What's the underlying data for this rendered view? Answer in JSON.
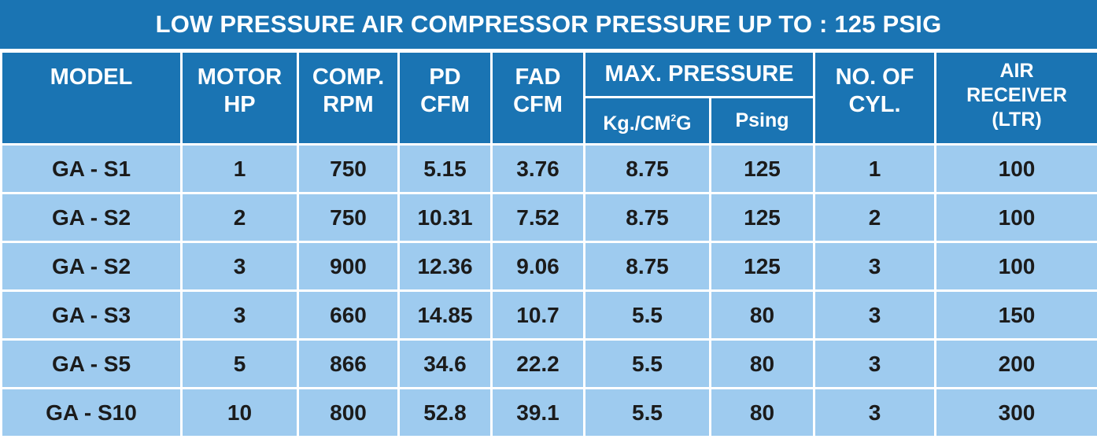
{
  "title": "LOW PRESSURE AIR COMPRESSOR PRESSURE UP TO : 125 PSIG",
  "headers": {
    "model": "MODEL",
    "motor_hp": [
      "MOTOR",
      "HP"
    ],
    "comp_rpm": [
      "COMP.",
      "RPM"
    ],
    "pd_cfm": [
      "PD",
      "CFM"
    ],
    "fad_cfm": [
      "FAD",
      "CFM"
    ],
    "max_pressure": "MAX. PRESSURE",
    "kg_cm2g": {
      "prefix": "Kg./CM",
      "superscript": "2",
      "suffix": "G"
    },
    "psing": "Psing",
    "no_of_cyl": [
      "NO. OF",
      "CYL."
    ],
    "air_receiver": [
      "AIR",
      "RECEIVER",
      "(LTR)"
    ]
  },
  "rows": [
    [
      "GA - S1",
      "1",
      "750",
      "5.15",
      "3.76",
      "8.75",
      "125",
      "1",
      "100"
    ],
    [
      "GA - S2",
      "2",
      "750",
      "10.31",
      "7.52",
      "8.75",
      "125",
      "2",
      "100"
    ],
    [
      "GA - S2",
      "3",
      "900",
      "12.36",
      "9.06",
      "8.75",
      "125",
      "3",
      "100"
    ],
    [
      "GA - S3",
      "3",
      "660",
      "14.85",
      "10.7",
      "5.5",
      "80",
      "3",
      "150"
    ],
    [
      "GA - S5",
      "5",
      "866",
      "34.6",
      "22.2",
      "5.5",
      "80",
      "3",
      "200"
    ],
    [
      "GA - S10",
      "10",
      "800",
      "52.8",
      "39.1",
      "5.5",
      "80",
      "3",
      "300"
    ]
  ],
  "colors": {
    "header_blue": "#1a74b3",
    "row_light_blue": "#9ecbef",
    "grid_white": "#ffffff"
  }
}
